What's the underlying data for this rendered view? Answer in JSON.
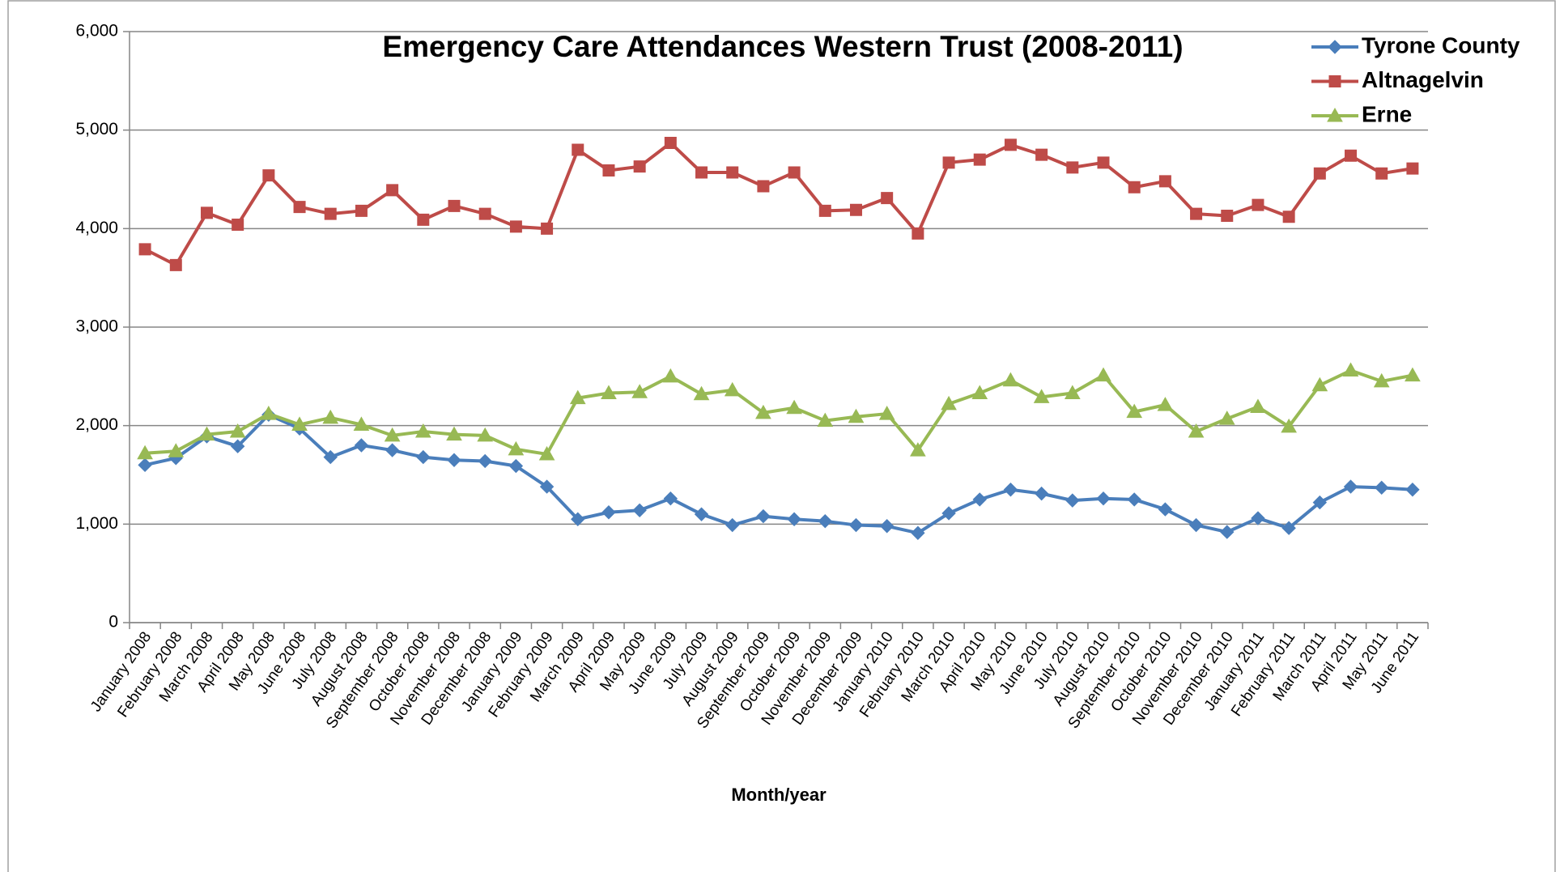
{
  "chart_data": {
    "type": "line",
    "title": "Emergency Care Attendances Western Trust (2008-2011)",
    "x_label": "Month/year",
    "categories": [
      "January 2008",
      "February 2008",
      "March 2008",
      "April 2008",
      "May 2008",
      "June 2008",
      "July 2008",
      "August 2008",
      "September 2008",
      "October 2008",
      "November 2008",
      "December 2008",
      "January 2009",
      "February 2009",
      "March 2009",
      "April 2009",
      "May 2009",
      "June 2009",
      "July 2009",
      "August 2009",
      "September 2009",
      "October 2009",
      "November 2009",
      "December 2009",
      "January 2010",
      "February 2010",
      "March 2010",
      "April 2010",
      "May 2010",
      "June 2010",
      "July 2010",
      "August 2010",
      "September 2010",
      "October 2010",
      "November 2010",
      "December 2010",
      "January 2011",
      "February 2011",
      "March 2011",
      "April 2011",
      "May 2011",
      "June 2011"
    ],
    "series": [
      {
        "name": "Tyrone County",
        "color": "#4a7ebb",
        "marker": "diamond",
        "values": [
          1600,
          1670,
          1890,
          1790,
          2110,
          1970,
          1680,
          1800,
          1750,
          1680,
          1650,
          1640,
          1590,
          1380,
          1050,
          1120,
          1140,
          1260,
          1100,
          990,
          1080,
          1050,
          1030,
          990,
          980,
          910,
          1110,
          1250,
          1350,
          1310,
          1240,
          1260,
          1250,
          1150,
          990,
          920,
          1060,
          960,
          1220,
          1380,
          1370,
          1350
        ]
      },
      {
        "name": "Altnagelvin",
        "color": "#be4b48",
        "marker": "square",
        "values": [
          3790,
          3630,
          4160,
          4040,
          4540,
          4220,
          4150,
          4180,
          4390,
          4090,
          4230,
          4150,
          4020,
          4000,
          4800,
          4590,
          4630,
          4870,
          4570,
          4570,
          4430,
          4570,
          4180,
          4190,
          4310,
          3950,
          4670,
          4700,
          4850,
          4750,
          4620,
          4670,
          4420,
          4480,
          4150,
          4130,
          4240,
          4120,
          4560,
          4740,
          4560,
          4610
        ]
      },
      {
        "name": "Erne",
        "color": "#98b954",
        "marker": "triangle",
        "values": [
          1720,
          1740,
          1910,
          1940,
          2120,
          2010,
          2080,
          2010,
          1900,
          1940,
          1910,
          1900,
          1760,
          1710,
          2280,
          2330,
          2340,
          2500,
          2320,
          2360,
          2130,
          2180,
          2050,
          2090,
          2120,
          1750,
          2220,
          2330,
          2460,
          2290,
          2330,
          2510,
          2140,
          2210,
          1940,
          2070,
          2190,
          1990,
          2410,
          2560,
          2450,
          2510
        ]
      }
    ],
    "ylim": [
      0,
      6000
    ],
    "yticks": [
      {
        "value": 0,
        "label": "0"
      },
      {
        "value": 1000,
        "label": "1,000"
      },
      {
        "value": 2000,
        "label": "2,000"
      },
      {
        "value": 3000,
        "label": "3,000"
      },
      {
        "value": 4000,
        "label": "4,000"
      },
      {
        "value": 5000,
        "label": "5,000"
      },
      {
        "value": 6000,
        "label": "6,000"
      }
    ],
    "grid": true,
    "legend": "top-right"
  }
}
